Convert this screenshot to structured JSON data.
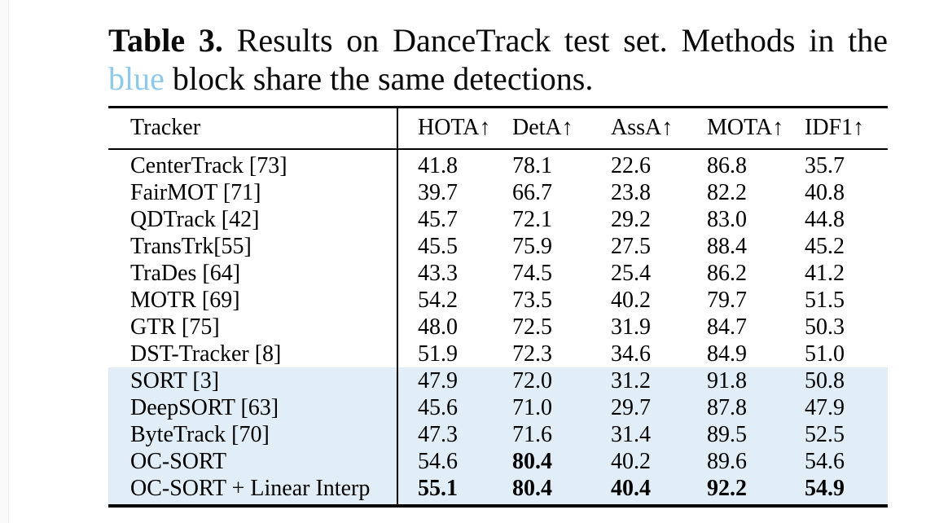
{
  "caption": {
    "label": "Table 3.",
    "line1_rest": "Results on DanceTrack test set.  Methods in the",
    "blue_word": "blue",
    "line2_rest": " block share the same detections."
  },
  "colors": {
    "blue_word": "#8ec9ec",
    "blue_block": "#e1eef8",
    "rule": "#000000"
  },
  "table": {
    "headers": [
      "Tracker",
      "HOTA↑",
      "DetA↑",
      "AssA↑",
      "MOTA↑",
      "IDF1↑"
    ],
    "rows": [
      {
        "tracker": "CenterTrack [73]",
        "values": [
          "41.8",
          "78.1",
          "22.6",
          "86.8",
          "35.7"
        ],
        "highlight": false,
        "bold": []
      },
      {
        "tracker": "FairMOT [71]",
        "values": [
          "39.7",
          "66.7",
          "23.8",
          "82.2",
          "40.8"
        ],
        "highlight": false,
        "bold": []
      },
      {
        "tracker": "QDTrack [42]",
        "values": [
          "45.7",
          "72.1",
          "29.2",
          "83.0",
          "44.8"
        ],
        "highlight": false,
        "bold": []
      },
      {
        "tracker": "TransTrk[55]",
        "values": [
          "45.5",
          "75.9",
          "27.5",
          "88.4",
          "45.2"
        ],
        "highlight": false,
        "bold": []
      },
      {
        "tracker": "TraDes [64]",
        "values": [
          "43.3",
          "74.5",
          "25.4",
          "86.2",
          "41.2"
        ],
        "highlight": false,
        "bold": []
      },
      {
        "tracker": "MOTR [69]",
        "values": [
          "54.2",
          "73.5",
          "40.2",
          "79.7",
          "51.5"
        ],
        "highlight": false,
        "bold": []
      },
      {
        "tracker": "GTR [75]",
        "values": [
          "48.0",
          "72.5",
          "31.9",
          "84.7",
          "50.3"
        ],
        "highlight": false,
        "bold": []
      },
      {
        "tracker": "DST-Tracker [8]",
        "values": [
          "51.9",
          "72.3",
          "34.6",
          "84.9",
          "51.0"
        ],
        "highlight": false,
        "bold": []
      },
      {
        "tracker": "SORT [3]",
        "values": [
          "47.9",
          "72.0",
          "31.2",
          "91.8",
          "50.8"
        ],
        "highlight": true,
        "bold": []
      },
      {
        "tracker": "DeepSORT [63]",
        "values": [
          "45.6",
          "71.0",
          "29.7",
          "87.8",
          "47.9"
        ],
        "highlight": true,
        "bold": []
      },
      {
        "tracker": "ByteTrack [70]",
        "values": [
          "47.3",
          "71.6",
          "31.4",
          "89.5",
          "52.5"
        ],
        "highlight": true,
        "bold": []
      },
      {
        "tracker": "OC-SORT",
        "values": [
          "54.6",
          "80.4",
          "40.2",
          "89.6",
          "54.6"
        ],
        "highlight": true,
        "bold": [
          1
        ]
      },
      {
        "tracker": "OC-SORT + Linear Interp",
        "values": [
          "55.1",
          "80.4",
          "40.4",
          "92.2",
          "54.9"
        ],
        "highlight": true,
        "bold": [
          0,
          1,
          2,
          3,
          4
        ]
      }
    ]
  }
}
